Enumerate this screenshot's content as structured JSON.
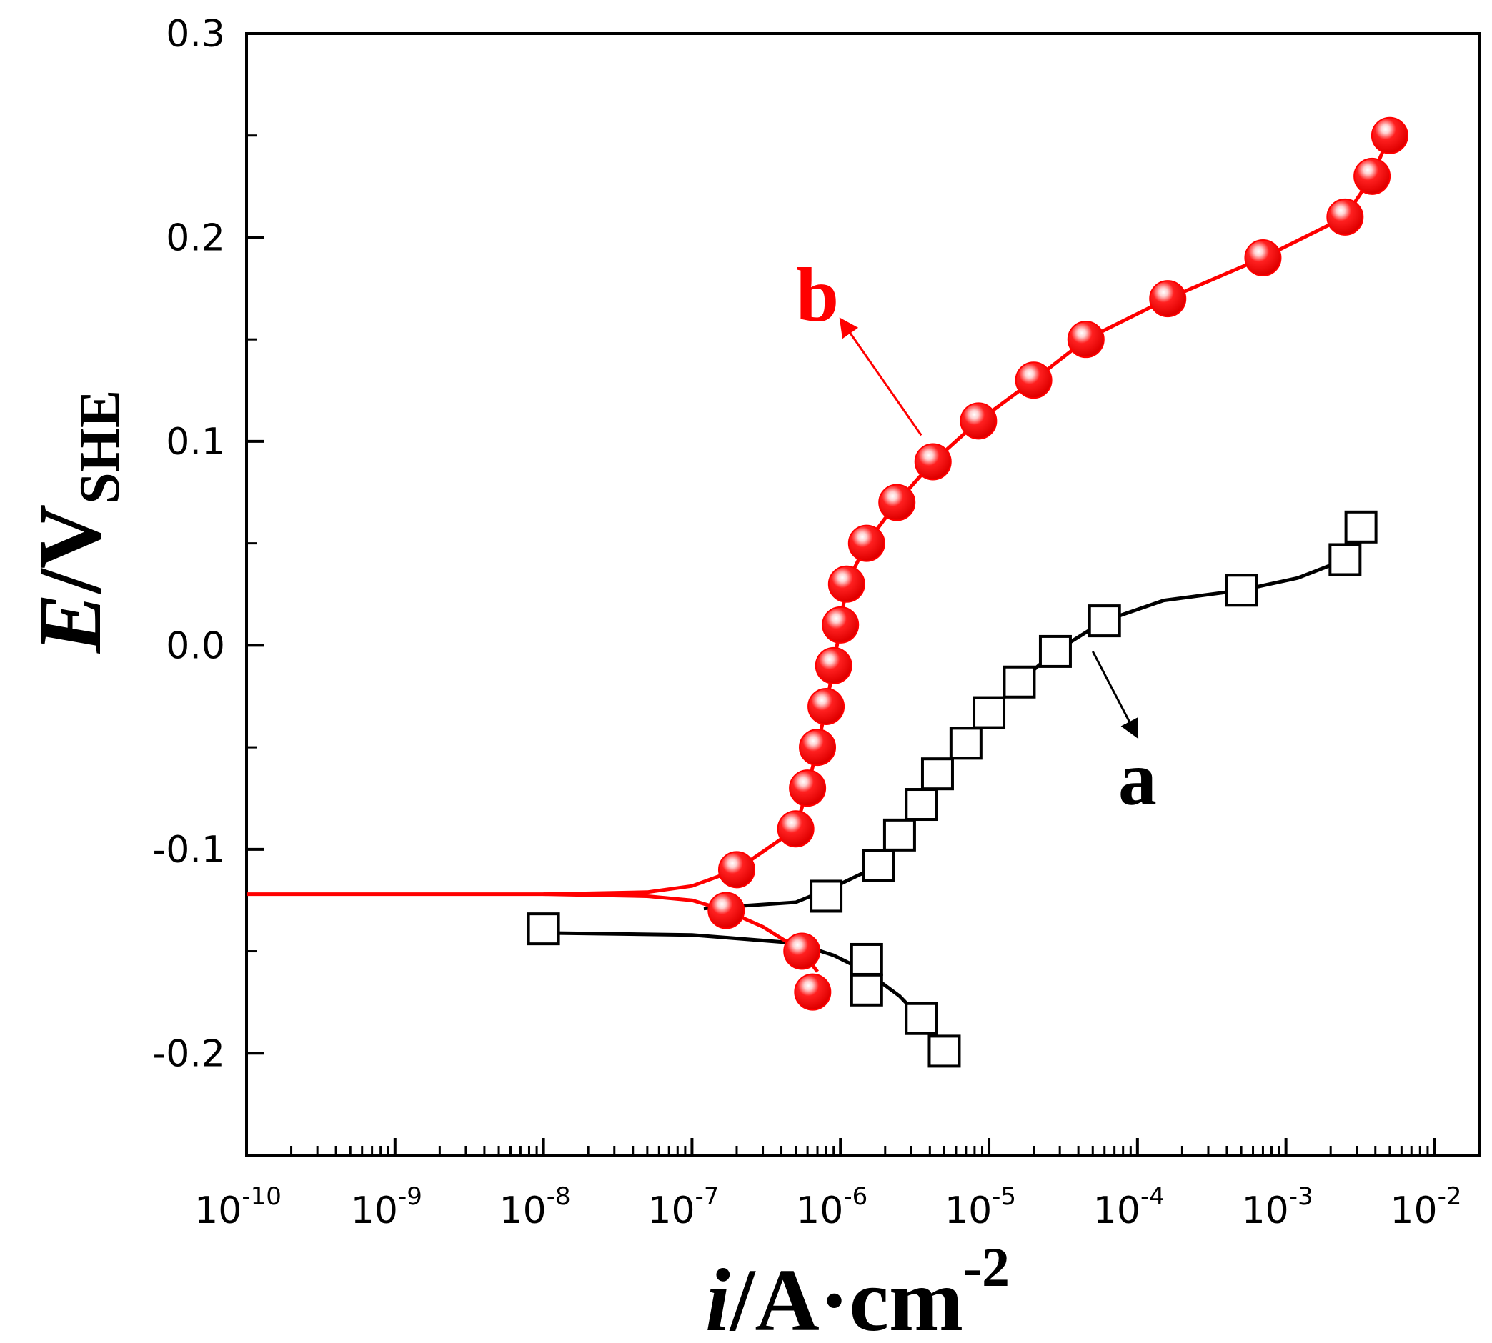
{
  "chart_data": {
    "type": "line",
    "title": "",
    "xlabel": {
      "italic": "i",
      "text": "/A·cm",
      "superscript": "-2"
    },
    "ylabel": {
      "italic": "E",
      "text": "/V",
      "subscript": "SHE"
    },
    "xscale": "log",
    "xlim": [
      1e-10,
      0.02
    ],
    "ylim": [
      -0.25,
      0.3
    ],
    "yticks": [
      {
        "v": 0.3,
        "label": "0.3"
      },
      {
        "v": 0.2,
        "label": "0.2"
      },
      {
        "v": 0.1,
        "label": "0.1"
      },
      {
        "v": 0.0,
        "label": "0.0"
      },
      {
        "v": -0.1,
        "label": "-0.1"
      },
      {
        "v": -0.2,
        "label": "-0.2"
      }
    ],
    "xticks": [
      {
        "exp": -10,
        "base": "10",
        "sup": "-10"
      },
      {
        "exp": -9,
        "base": "10",
        "sup": "-9"
      },
      {
        "exp": -8,
        "base": "10",
        "sup": "-8"
      },
      {
        "exp": -7,
        "base": "10",
        "sup": "-7"
      },
      {
        "exp": -6,
        "base": "10",
        "sup": "-6"
      },
      {
        "exp": -5,
        "base": "10",
        "sup": "-5"
      },
      {
        "exp": -4,
        "base": "10",
        "sup": "-4"
      },
      {
        "exp": -3,
        "base": "10",
        "sup": "-3"
      },
      {
        "exp": -2,
        "base": "10",
        "sup": "-2"
      }
    ],
    "series": [
      {
        "name": "a",
        "color": "#000000",
        "marker": "open-square",
        "curve_anodic": [
          [
            1.2e-07,
            -0.129
          ],
          [
            5e-07,
            -0.126
          ],
          [
            1e-06,
            -0.117
          ],
          [
            1.8e-06,
            -0.108
          ],
          [
            2.5e-06,
            -0.093
          ],
          [
            3.5e-06,
            -0.078
          ],
          [
            4.5e-06,
            -0.063
          ],
          [
            7e-06,
            -0.048
          ],
          [
            1e-05,
            -0.033
          ],
          [
            1.6e-05,
            -0.018
          ],
          [
            2.8e-05,
            -0.003
          ],
          [
            6e-05,
            0.012
          ],
          [
            0.00015,
            0.022
          ],
          [
            0.0005,
            0.027
          ],
          [
            0.0012,
            0.033
          ],
          [
            0.0025,
            0.042
          ],
          [
            0.0032,
            0.058
          ]
        ],
        "curve_cathodic": [
          [
            1e-08,
            -0.141
          ],
          [
            1e-07,
            -0.142
          ],
          [
            5e-07,
            -0.146
          ],
          [
            9e-07,
            -0.152
          ],
          [
            1.5e-06,
            -0.16
          ],
          [
            2.5e-06,
            -0.172
          ],
          [
            3.5e-06,
            -0.183
          ],
          [
            5e-06,
            -0.2
          ]
        ],
        "markers": [
          [
            1e-08,
            -0.139
          ],
          [
            8e-07,
            -0.123
          ],
          [
            1.8e-06,
            -0.108
          ],
          [
            2.5e-06,
            -0.093
          ],
          [
            3.5e-06,
            -0.078
          ],
          [
            4.5e-06,
            -0.063
          ],
          [
            7e-06,
            -0.048
          ],
          [
            1e-05,
            -0.033
          ],
          [
            1.6e-05,
            -0.018
          ],
          [
            2.8e-05,
            -0.003
          ],
          [
            6e-05,
            0.012
          ],
          [
            0.0005,
            0.027
          ],
          [
            0.0025,
            0.042
          ],
          [
            0.0032,
            0.058
          ],
          [
            1.5e-06,
            -0.154
          ],
          [
            1.5e-06,
            -0.169
          ],
          [
            3.5e-06,
            -0.183
          ],
          [
            5e-06,
            -0.199
          ]
        ],
        "label_text": "a"
      },
      {
        "name": "b",
        "color": "#ff0000",
        "marker": "filled-circle",
        "curve_anodic": [
          [
            1e-10,
            -0.122
          ],
          [
            1e-08,
            -0.122
          ],
          [
            5e-08,
            -0.121
          ],
          [
            1e-07,
            -0.118
          ],
          [
            2e-07,
            -0.11
          ],
          [
            5e-07,
            -0.09
          ],
          [
            6e-07,
            -0.07
          ],
          [
            7e-07,
            -0.05
          ],
          [
            8e-07,
            -0.03
          ],
          [
            9e-07,
            -0.01
          ],
          [
            1e-06,
            0.01
          ],
          [
            1.1e-06,
            0.03
          ],
          [
            1.5e-06,
            0.05
          ],
          [
            2.4e-06,
            0.07
          ],
          [
            4.2e-06,
            0.09
          ],
          [
            8.5e-06,
            0.11
          ],
          [
            2e-05,
            0.13
          ],
          [
            4.5e-05,
            0.15
          ],
          [
            0.00016,
            0.17
          ],
          [
            0.0007,
            0.19
          ],
          [
            0.0025,
            0.21
          ],
          [
            0.0038,
            0.23
          ],
          [
            0.005,
            0.25
          ]
        ],
        "curve_cathodic": [
          [
            1e-08,
            -0.122
          ],
          [
            5e-08,
            -0.123
          ],
          [
            1e-07,
            -0.125
          ],
          [
            1.7e-07,
            -0.13
          ],
          [
            3e-07,
            -0.138
          ],
          [
            5.5e-07,
            -0.15
          ],
          [
            7e-07,
            -0.16
          ]
        ],
        "markers": [
          [
            2e-07,
            -0.11
          ],
          [
            5e-07,
            -0.09
          ],
          [
            6e-07,
            -0.07
          ],
          [
            7e-07,
            -0.05
          ],
          [
            8e-07,
            -0.03
          ],
          [
            9e-07,
            -0.01
          ],
          [
            1e-06,
            0.01
          ],
          [
            1.1e-06,
            0.03
          ],
          [
            1.5e-06,
            0.05
          ],
          [
            2.4e-06,
            0.07
          ],
          [
            4.2e-06,
            0.09
          ],
          [
            8.5e-06,
            0.11
          ],
          [
            2e-05,
            0.13
          ],
          [
            4.5e-05,
            0.15
          ],
          [
            0.00016,
            0.17
          ],
          [
            0.0007,
            0.19
          ],
          [
            0.0025,
            0.21
          ],
          [
            0.0038,
            0.23
          ],
          [
            0.005,
            0.25
          ],
          [
            1.7e-07,
            -0.13
          ],
          [
            5.5e-07,
            -0.15
          ],
          [
            6.5e-07,
            -0.17
          ]
        ],
        "label_text": "b"
      }
    ],
    "annotations": [
      {
        "series": "a",
        "text": "a",
        "arrow_from": [
          5e-05,
          -0.003
        ],
        "arrow_to": [
          0.0001,
          -0.045
        ],
        "text_at": [
          0.0001,
          -0.062
        ]
      },
      {
        "series": "b",
        "text": "b",
        "arrow_from": [
          3.5e-06,
          0.103
        ],
        "arrow_to": [
          1e-06,
          0.16
        ],
        "text_at": [
          7e-07,
          0.175
        ]
      }
    ]
  }
}
